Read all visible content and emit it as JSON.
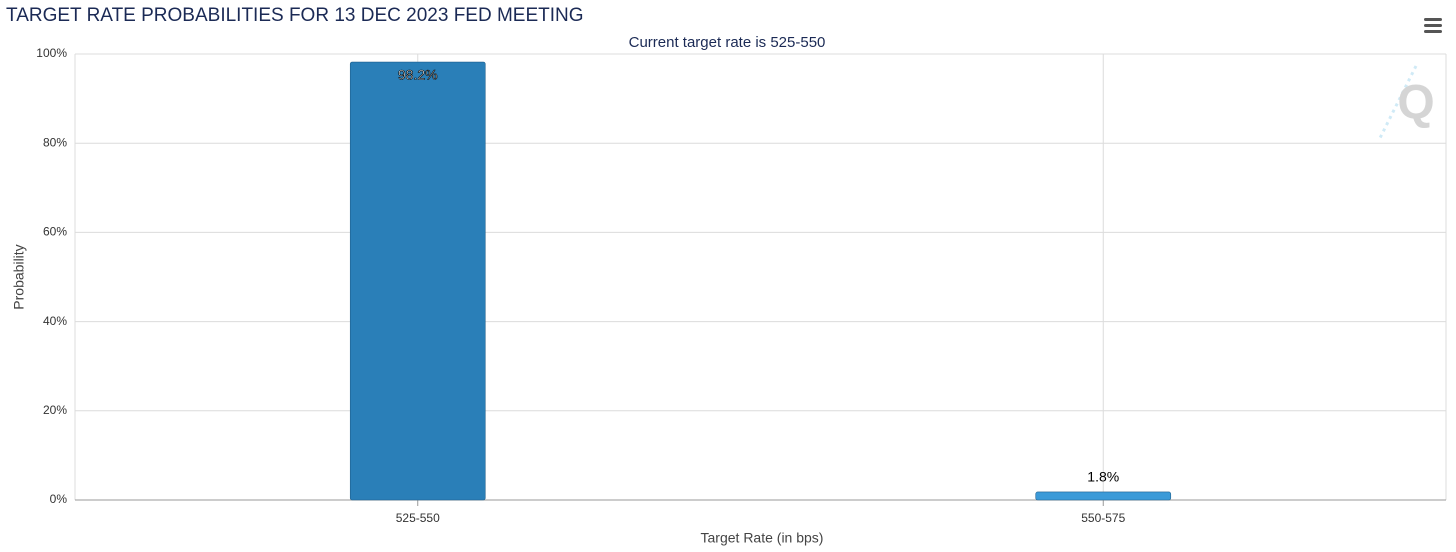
{
  "chart_data": {
    "type": "bar",
    "title": "TARGET RATE PROBABILITIES FOR 13 DEC 2023 FED MEETING",
    "subtitle": "Current target rate is 525-550",
    "x_label": "Target Rate (in bps)",
    "y_label": "Probability",
    "categories": [
      "525-550",
      "550-575"
    ],
    "values": [
      98.2,
      1.8
    ],
    "value_labels": [
      "98.2%",
      "1.8%"
    ],
    "colors": [
      "#2a7fb8",
      "#3b9ad8"
    ],
    "ylim": [
      0,
      100
    ],
    "yticks": [
      {
        "value": 0,
        "label": "0%"
      },
      {
        "value": 20,
        "label": "20%"
      },
      {
        "value": 40,
        "label": "40%"
      },
      {
        "value": 60,
        "label": "60%"
      },
      {
        "value": 80,
        "label": "80%"
      },
      {
        "value": 100,
        "label": "100%"
      }
    ],
    "grid": true
  }
}
